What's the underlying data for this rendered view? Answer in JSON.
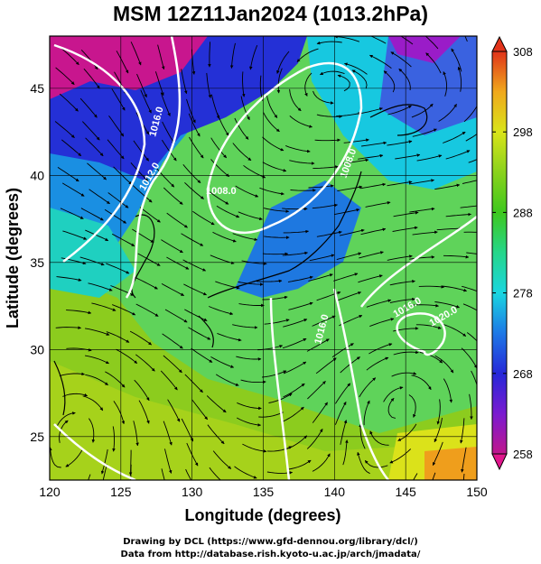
{
  "title": "MSM 12Z11Jan2024 (1013.2hPa)",
  "x_axis": {
    "label": "Longitude (degrees)",
    "range": [
      120,
      150
    ],
    "ticks": [
      "120",
      "125",
      "130",
      "135",
      "140",
      "145",
      "150"
    ]
  },
  "y_axis": {
    "label": "Latitude  (degrees)",
    "range": [
      22.5,
      48
    ],
    "ticks": [
      "25",
      "30",
      "35",
      "40",
      "45"
    ]
  },
  "colorbar": {
    "range": [
      258,
      308
    ],
    "ticks": [
      "308",
      "298",
      "288",
      "278",
      "268",
      "258"
    ],
    "colors": [
      "#c0168c",
      "#7a1ad0",
      "#2628d8",
      "#1d78e6",
      "#1ad6e0",
      "#25d68a",
      "#3ec81e",
      "#8ad21c",
      "#d9e41a",
      "#f0a81c",
      "#e0331a"
    ]
  },
  "contours": [
    {
      "label": "1016.0"
    },
    {
      "label": "1012.0"
    },
    {
      "label": "1008.0"
    },
    {
      "label": "1008.0"
    },
    {
      "label": "1016.0"
    },
    {
      "label": "1016.0"
    },
    {
      "label": "1020.0"
    }
  ],
  "credits": [
    "Drawing by DCL (https://www.gfd-dennou.org/library/dcl/)",
    "Data from http://database.rish.kyoto-u.ac.jp/arch/jmadata/"
  ]
}
